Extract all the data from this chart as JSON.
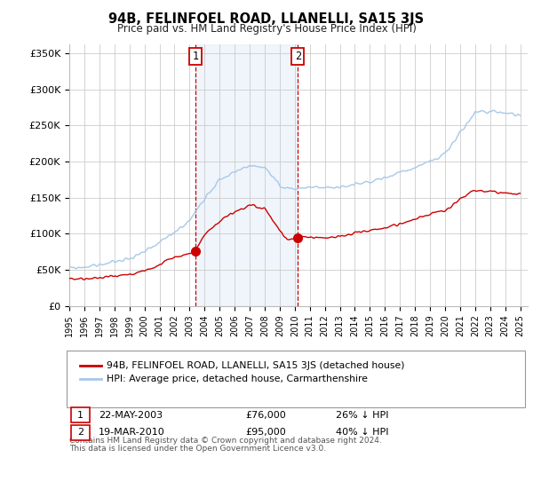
{
  "title": "94B, FELINFOEL ROAD, LLANELLI, SA15 3JS",
  "subtitle": "Price paid vs. HM Land Registry's House Price Index (HPI)",
  "ylabel_ticks": [
    "£0",
    "£50K",
    "£100K",
    "£150K",
    "£200K",
    "£250K",
    "£300K",
    "£350K"
  ],
  "ytick_vals": [
    0,
    50000,
    100000,
    150000,
    200000,
    250000,
    300000,
    350000
  ],
  "ylim": [
    0,
    362000
  ],
  "xlim_start": 1995.0,
  "xlim_end": 2025.5,
  "sale1_x": 2003.388,
  "sale1_y": 76000,
  "sale1_label": "1",
  "sale1_date": "22-MAY-2003",
  "sale1_price": "£76,000",
  "sale1_hpi": "26% ↓ HPI",
  "sale2_x": 2010.21,
  "sale2_y": 95000,
  "sale2_label": "2",
  "sale2_date": "19-MAR-2010",
  "sale2_price": "£95,000",
  "sale2_hpi": "40% ↓ HPI",
  "hpi_color": "#a8c8e8",
  "price_color": "#cc0000",
  "shade_color": "#d8e8f5",
  "vline_color": "#cc0000",
  "legend_label_price": "94B, FELINFOEL ROAD, LLANELLI, SA15 3JS (detached house)",
  "legend_label_hpi": "HPI: Average price, detached house, Carmarthenshire",
  "footer1": "Contains HM Land Registry data © Crown copyright and database right 2024.",
  "footer2": "This data is licensed under the Open Government Licence v3.0.",
  "hpi_anchors_x": [
    1995,
    1996,
    1997,
    1998,
    1999,
    2000,
    2001,
    2002,
    2003,
    2004,
    2005,
    2006,
    2007,
    2008,
    2009,
    2010,
    2011,
    2012,
    2013,
    2014,
    2015,
    2016,
    2017,
    2018,
    2019,
    2020,
    2021,
    2022,
    2023,
    2024,
    2025
  ],
  "hpi_anchors_y": [
    52000,
    54000,
    57000,
    61000,
    66000,
    74000,
    87000,
    103000,
    118000,
    150000,
    175000,
    185000,
    195000,
    192000,
    165000,
    163000,
    165000,
    163000,
    165000,
    168000,
    172000,
    178000,
    185000,
    192000,
    200000,
    210000,
    240000,
    268000,
    270000,
    268000,
    265000
  ],
  "price_anchors_x": [
    1995,
    1996,
    1997,
    1998,
    1999,
    2000,
    2001,
    2002,
    2003,
    2003.4,
    2004,
    2005,
    2006,
    2007,
    2008,
    2009,
    2009.5,
    2010.21,
    2011,
    2012,
    2013,
    2014,
    2015,
    2016,
    2017,
    2018,
    2019,
    2020,
    2021,
    2022,
    2023,
    2024,
    2025
  ],
  "price_anchors_y": [
    36000,
    37000,
    39000,
    41000,
    44000,
    49000,
    57000,
    67000,
    73000,
    76000,
    98000,
    118000,
    130000,
    140000,
    135000,
    105000,
    93000,
    95000,
    96000,
    94000,
    96000,
    100000,
    105000,
    108000,
    114000,
    120000,
    128000,
    132000,
    148000,
    160000,
    158000,
    157000,
    155000
  ]
}
